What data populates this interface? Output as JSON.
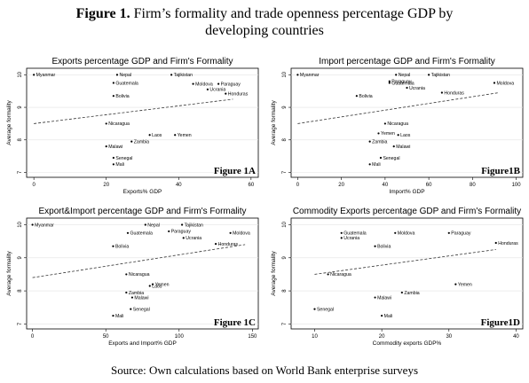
{
  "header": {
    "figure_label": "Figure 1.",
    "title_line1": "Firm’s formality and trade openness percentage GDP by",
    "title_line2": "developing countries"
  },
  "footer": {
    "source": "Source: Own calculations based on World Bank enterprise surveys"
  },
  "chart_data": [
    {
      "type": "scatter",
      "title": "Exports percentage GDP and Firm's Formality",
      "xlabel": "Exports% GDP",
      "ylabel": "Average formality",
      "tag": "Figure 1A",
      "xlim": [
        -2,
        62
      ],
      "ylim": [
        6.85,
        10.2
      ],
      "xticks": [
        0,
        20,
        40,
        60
      ],
      "yticks": [
        7,
        8,
        9,
        10
      ],
      "yticklabels": [
        "7",
        "8",
        "9",
        "10"
      ],
      "fit_line": [
        [
          0,
          8.5
        ],
        [
          55,
          9.25
        ]
      ],
      "points": [
        {
          "label": "Myanmar",
          "x": 0,
          "y": 10.0
        },
        {
          "label": "Nepal",
          "x": 23,
          "y": 10.0
        },
        {
          "label": "Tajikistan",
          "x": 38,
          "y": 10.0
        },
        {
          "label": "Guatemala",
          "x": 22,
          "y": 9.75
        },
        {
          "label": "Moldova",
          "x": 44,
          "y": 9.72
        },
        {
          "label": "Paraguay",
          "x": 51,
          "y": 9.72
        },
        {
          "label": "Ucrania",
          "x": 48,
          "y": 9.55
        },
        {
          "label": "Honduras",
          "x": 53,
          "y": 9.42
        },
        {
          "label": "Bolivia",
          "x": 22,
          "y": 9.35
        },
        {
          "label": "Nicaragua",
          "x": 20,
          "y": 8.5
        },
        {
          "label": "Yemen",
          "x": 39,
          "y": 8.15
        },
        {
          "label": "Laos",
          "x": 32,
          "y": 8.15
        },
        {
          "label": "Zambia",
          "x": 27,
          "y": 7.95
        },
        {
          "label": "Malawi",
          "x": 20,
          "y": 7.8
        },
        {
          "label": "Senegal",
          "x": 22,
          "y": 7.45
        },
        {
          "label": "Mali",
          "x": 22,
          "y": 7.25
        }
      ]
    },
    {
      "type": "scatter",
      "title": "Import percentage GDP and Firm's Formality",
      "xlabel": "Import% GDP",
      "ylabel": "Average formality",
      "tag": "Figure1B",
      "xlim": [
        -3,
        103
      ],
      "ylim": [
        6.85,
        10.2
      ],
      "xticks": [
        0,
        20,
        40,
        60,
        80,
        100
      ],
      "yticks": [
        7,
        8,
        9,
        10
      ],
      "yticklabels": [
        "7",
        "8",
        "9",
        "10"
      ],
      "fit_line": [
        [
          0,
          8.5
        ],
        [
          92,
          9.45
        ]
      ],
      "points": [
        {
          "label": "Myanmar",
          "x": 0,
          "y": 10.0
        },
        {
          "label": "Nepal",
          "x": 45,
          "y": 10.0
        },
        {
          "label": "Tajikistan",
          "x": 60,
          "y": 10.0
        },
        {
          "label": "Paraguay",
          "x": 42,
          "y": 9.8
        },
        {
          "label": "Guatemala",
          "x": 42,
          "y": 9.75
        },
        {
          "label": "Moldova",
          "x": 90,
          "y": 9.75
        },
        {
          "label": "Ucrania",
          "x": 50,
          "y": 9.6
        },
        {
          "label": "Honduras",
          "x": 66,
          "y": 9.45
        },
        {
          "label": "Bolivia",
          "x": 27,
          "y": 9.35
        },
        {
          "label": "Nicaragua",
          "x": 40,
          "y": 8.5
        },
        {
          "label": "Yemen",
          "x": 37,
          "y": 8.2
        },
        {
          "label": "Laos",
          "x": 46,
          "y": 8.15
        },
        {
          "label": "Zambia",
          "x": 33,
          "y": 7.95
        },
        {
          "label": "Malawi",
          "x": 44,
          "y": 7.8
        },
        {
          "label": "Senegal",
          "x": 38,
          "y": 7.45
        },
        {
          "label": "Mali",
          "x": 33,
          "y": 7.25
        }
      ]
    },
    {
      "type": "scatter",
      "title": "Export&Import percentage GDP and Firm's Formality",
      "xlabel": "Exports and Import% GDP",
      "ylabel": "Average formality",
      "tag": "Figure 1C",
      "xlim": [
        -4,
        154
      ],
      "ylim": [
        6.85,
        10.2
      ],
      "xticks": [
        0,
        50,
        100,
        150
      ],
      "yticks": [
        7,
        8,
        9,
        10
      ],
      "yticklabels": [
        "7",
        "8",
        "9",
        "10"
      ],
      "fit_line": [
        [
          0,
          8.4
        ],
        [
          145,
          9.4
        ]
      ],
      "points": [
        {
          "label": "Myanmar",
          "x": 0,
          "y": 10.0
        },
        {
          "label": "Nepal",
          "x": 77,
          "y": 10.0
        },
        {
          "label": "Tajikistan",
          "x": 102,
          "y": 10.0
        },
        {
          "label": "Guatemala",
          "x": 65,
          "y": 9.75
        },
        {
          "label": "Paraguay",
          "x": 93,
          "y": 9.8
        },
        {
          "label": "Moldova",
          "x": 135,
          "y": 9.75
        },
        {
          "label": "Ucrania",
          "x": 103,
          "y": 9.6
        },
        {
          "label": "Honduras",
          "x": 125,
          "y": 9.42
        },
        {
          "label": "Bolivia",
          "x": 55,
          "y": 9.35
        },
        {
          "label": "Nicaragua",
          "x": 64,
          "y": 8.5
        },
        {
          "label": "Yemen",
          "x": 82,
          "y": 8.2
        },
        {
          "label": "Laos",
          "x": 80,
          "y": 8.15
        },
        {
          "label": "Zambia",
          "x": 64,
          "y": 7.95
        },
        {
          "label": "Malawi",
          "x": 68,
          "y": 7.8
        },
        {
          "label": "Senegal",
          "x": 67,
          "y": 7.45
        },
        {
          "label": "Mali",
          "x": 55,
          "y": 7.25
        }
      ]
    },
    {
      "type": "scatter",
      "title": "Commodity Exports percentage GDP and Firm's Formality",
      "xlabel": "Commodity exports GDP%",
      "ylabel": "Average formality",
      "tag": "Figure1D",
      "xlim": [
        6.5,
        41
      ],
      "ylim": [
        6.85,
        10.2
      ],
      "xticks": [
        10,
        20,
        30,
        40
      ],
      "yticks": [
        7,
        8,
        9,
        10
      ],
      "yticklabels": [
        "7",
        "8",
        "9",
        "10"
      ],
      "fit_line": [
        [
          10,
          8.5
        ],
        [
          37,
          9.25
        ]
      ],
      "points": [
        {
          "label": "Guatemala",
          "x": 14,
          "y": 9.75
        },
        {
          "label": "Moldova",
          "x": 22,
          "y": 9.75
        },
        {
          "label": "Paraguay",
          "x": 30,
          "y": 9.75
        },
        {
          "label": "Ucrania",
          "x": 14,
          "y": 9.6
        },
        {
          "label": "Honduras",
          "x": 37,
          "y": 9.45
        },
        {
          "label": "Bolivia",
          "x": 19,
          "y": 9.35
        },
        {
          "label": "Nicaragua",
          "x": 12,
          "y": 8.5
        },
        {
          "label": "Yemen",
          "x": 31,
          "y": 8.2
        },
        {
          "label": "Zambia",
          "x": 23,
          "y": 7.95
        },
        {
          "label": "Malawi",
          "x": 19,
          "y": 7.8
        },
        {
          "label": "Senegal",
          "x": 10,
          "y": 7.45
        },
        {
          "label": "Mali",
          "x": 20,
          "y": 7.25
        }
      ]
    }
  ]
}
